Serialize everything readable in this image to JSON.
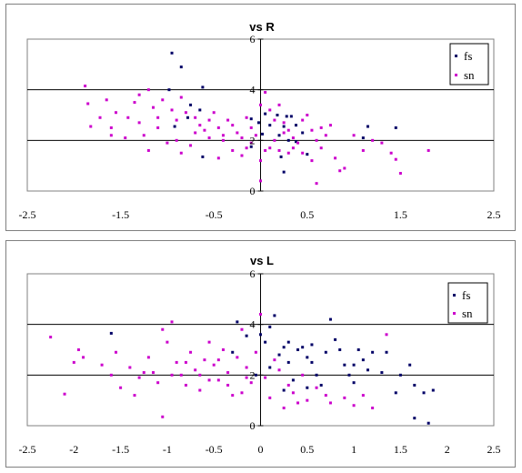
{
  "chart_data": [
    {
      "type": "scatter",
      "title": "vs R",
      "xlim": [
        -2.5,
        2.5
      ],
      "ylim": [
        0,
        6
      ],
      "x_ticks": [
        "-2.5",
        "-1.5",
        "-0.5",
        "0.5",
        "1.5",
        "2.5"
      ],
      "y_ticks": [
        "0",
        "2",
        "4",
        "6"
      ],
      "grid": "horizontal",
      "legend": "top-right",
      "series": [
        {
          "name": "fs",
          "color": "#000066",
          "points": [
            [
              -0.95,
              5.45
            ],
            [
              -0.85,
              4.9
            ],
            [
              -0.98,
              4.0
            ],
            [
              -0.62,
              4.1
            ],
            [
              -0.75,
              3.4
            ],
            [
              -0.65,
              3.2
            ],
            [
              -0.78,
              2.9
            ],
            [
              -0.1,
              2.85
            ],
            [
              -0.02,
              2.7
            ],
            [
              0.05,
              3.05
            ],
            [
              0.18,
              3.0
            ],
            [
              0.28,
              2.95
            ],
            [
              0.33,
              2.95
            ],
            [
              0.1,
              2.6
            ],
            [
              0.25,
              2.55
            ],
            [
              0.38,
              2.6
            ],
            [
              0.45,
              2.3
            ],
            [
              0.2,
              2.2
            ],
            [
              0.3,
              2.0
            ],
            [
              0.38,
              1.95
            ],
            [
              1.15,
              2.55
            ],
            [
              1.45,
              2.5
            ],
            [
              1.1,
              2.1
            ],
            [
              0.22,
              1.35
            ],
            [
              0.25,
              0.75
            ],
            [
              -0.92,
              2.55
            ],
            [
              -0.62,
              1.35
            ],
            [
              -0.1,
              1.75
            ],
            [
              0.5,
              1.45
            ],
            [
              0.02,
              2.25
            ]
          ]
        },
        {
          "name": "sn",
          "color": "#cc00cc",
          "points": [
            [
              -1.88,
              4.15
            ],
            [
              -1.85,
              3.45
            ],
            [
              -1.65,
              3.6
            ],
            [
              -1.55,
              3.1
            ],
            [
              -1.72,
              2.9
            ],
            [
              -1.82,
              2.55
            ],
            [
              -1.6,
              2.5
            ],
            [
              -1.42,
              2.9
            ],
            [
              -1.35,
              3.5
            ],
            [
              -1.3,
              3.8
            ],
            [
              -1.2,
              4.0
            ],
            [
              -1.15,
              3.3
            ],
            [
              -1.1,
              2.9
            ],
            [
              -1.05,
              3.6
            ],
            [
              -0.95,
              3.2
            ],
            [
              -0.9,
              2.8
            ],
            [
              -0.85,
              3.7
            ],
            [
              -0.8,
              3.1
            ],
            [
              -0.7,
              2.9
            ],
            [
              -0.65,
              2.6
            ],
            [
              -0.6,
              2.4
            ],
            [
              -0.55,
              2.8
            ],
            [
              -0.5,
              3.1
            ],
            [
              -0.45,
              2.5
            ],
            [
              -0.4,
              2.2
            ],
            [
              -0.35,
              2.8
            ],
            [
              -0.3,
              2.6
            ],
            [
              -0.25,
              2.3
            ],
            [
              -0.2,
              2.1
            ],
            [
              -0.15,
              2.9
            ],
            [
              -0.1,
              2.5
            ],
            [
              -0.05,
              2.2
            ],
            [
              0.0,
              3.4
            ],
            [
              0.05,
              3.9
            ],
            [
              0.1,
              3.2
            ],
            [
              0.15,
              2.8
            ],
            [
              0.2,
              3.4
            ],
            [
              0.25,
              2.7
            ],
            [
              0.3,
              2.4
            ],
            [
              0.35,
              2.1
            ],
            [
              0.4,
              1.9
            ],
            [
              0.45,
              2.8
            ],
            [
              0.5,
              3.0
            ],
            [
              0.55,
              2.4
            ],
            [
              0.6,
              2.0
            ],
            [
              0.65,
              1.7
            ],
            [
              0.7,
              2.2
            ],
            [
              0.75,
              2.6
            ],
            [
              0.8,
              1.3
            ],
            [
              0.85,
              0.8
            ],
            [
              0.9,
              0.9
            ],
            [
              1.0,
              2.2
            ],
            [
              1.1,
              1.6
            ],
            [
              1.2,
              2.0
            ],
            [
              1.3,
              1.9
            ],
            [
              1.4,
              1.5
            ],
            [
              1.45,
              1.25
            ],
            [
              1.5,
              0.7
            ],
            [
              1.8,
              1.6
            ],
            [
              -1.45,
              2.1
            ],
            [
              -1.25,
              2.2
            ],
            [
              -1.0,
              1.9
            ],
            [
              -0.9,
              2.0
            ],
            [
              -0.75,
              1.8
            ],
            [
              -0.55,
              2.1
            ],
            [
              -0.3,
              1.6
            ],
            [
              -0.2,
              1.4
            ],
            [
              -0.1,
              1.9
            ],
            [
              0.05,
              1.6
            ],
            [
              0.1,
              1.7
            ],
            [
              0.2,
              1.6
            ],
            [
              0.3,
              1.5
            ],
            [
              0.45,
              1.5
            ],
            [
              0.55,
              1.2
            ],
            [
              0.6,
              0.3
            ],
            [
              0.0,
              0.4
            ],
            [
              -0.4,
              2.0
            ],
            [
              -0.7,
              2.3
            ],
            [
              -1.1,
              2.5
            ],
            [
              -1.3,
              2.7
            ],
            [
              -0.45,
              1.3
            ],
            [
              -0.15,
              1.7
            ],
            [
              -0.85,
              1.5
            ],
            [
              0.15,
              2.0
            ],
            [
              0.35,
              1.7
            ],
            [
              0.0,
              1.2
            ],
            [
              -1.6,
              2.2
            ],
            [
              -1.2,
              1.6
            ],
            [
              0.65,
              2.5
            ],
            [
              0.25,
              2.3
            ]
          ]
        }
      ]
    },
    {
      "type": "scatter",
      "title": "vs L",
      "xlim": [
        -2.5,
        2.5
      ],
      "ylim": [
        0,
        6
      ],
      "x_ticks": [
        "-2.5",
        "-2",
        "-1.5",
        "-1",
        "-0.5",
        "0",
        "0.5",
        "1",
        "1.5",
        "2",
        "2.5"
      ],
      "y_ticks": [
        "0",
        "2",
        "4",
        "6"
      ],
      "grid": "horizontal",
      "legend": "top-right",
      "series": [
        {
          "name": "fs",
          "color": "#000066",
          "points": [
            [
              -1.6,
              3.65
            ],
            [
              -0.15,
              3.55
            ],
            [
              -0.25,
              4.1
            ],
            [
              0.1,
              3.9
            ],
            [
              0.15,
              4.35
            ],
            [
              0.05,
              3.3
            ],
            [
              0.2,
              2.8
            ],
            [
              0.25,
              3.1
            ],
            [
              0.3,
              2.5
            ],
            [
              0.4,
              3.0
            ],
            [
              0.45,
              3.1
            ],
            [
              0.5,
              2.7
            ],
            [
              0.55,
              2.5
            ],
            [
              0.6,
              2.0
            ],
            [
              0.65,
              1.6
            ],
            [
              0.7,
              2.9
            ],
            [
              0.75,
              4.2
            ],
            [
              0.8,
              3.4
            ],
            [
              0.85,
              3.0
            ],
            [
              0.9,
              2.4
            ],
            [
              0.95,
              2.0
            ],
            [
              1.0,
              1.7
            ],
            [
              1.05,
              3.0
            ],
            [
              1.1,
              2.6
            ],
            [
              1.15,
              2.2
            ],
            [
              1.2,
              2.9
            ],
            [
              1.3,
              2.1
            ],
            [
              1.45,
              1.3
            ],
            [
              1.5,
              2.0
            ],
            [
              1.6,
              2.4
            ],
            [
              1.65,
              1.6
            ],
            [
              1.75,
              1.3
            ],
            [
              1.85,
              1.4
            ],
            [
              1.8,
              0.1
            ],
            [
              1.65,
              0.3
            ],
            [
              0.5,
              1.5
            ],
            [
              0.35,
              1.8
            ],
            [
              0.1,
              2.3
            ],
            [
              -0.05,
              2.0
            ],
            [
              0.0,
              3.6
            ],
            [
              0.3,
              3.3
            ],
            [
              0.55,
              3.2
            ],
            [
              0.25,
              1.4
            ],
            [
              -0.3,
              2.9
            ],
            [
              1.0,
              2.4
            ],
            [
              1.35,
              2.9
            ]
          ]
        },
        {
          "name": "sn",
          "color": "#cc00cc",
          "points": [
            [
              -2.25,
              3.5
            ],
            [
              -2.1,
              1.25
            ],
            [
              -1.95,
              3.0
            ],
            [
              -1.9,
              2.7
            ],
            [
              -1.7,
              2.4
            ],
            [
              -1.6,
              2.0
            ],
            [
              -1.55,
              2.9
            ],
            [
              -1.5,
              1.5
            ],
            [
              -1.4,
              2.3
            ],
            [
              -1.3,
              1.9
            ],
            [
              -1.2,
              2.7
            ],
            [
              -1.15,
              2.1
            ],
            [
              -1.1,
              1.7
            ],
            [
              -1.05,
              3.8
            ],
            [
              -1.0,
              3.3
            ],
            [
              -0.95,
              4.1
            ],
            [
              -0.9,
              2.5
            ],
            [
              -0.85,
              2.0
            ],
            [
              -0.8,
              1.6
            ],
            [
              -0.75,
              2.9
            ],
            [
              -0.7,
              2.2
            ],
            [
              -0.65,
              1.4
            ],
            [
              -0.6,
              2.6
            ],
            [
              -0.55,
              3.3
            ],
            [
              -0.5,
              2.4
            ],
            [
              -0.45,
              1.8
            ],
            [
              -0.4,
              3.0
            ],
            [
              -0.35,
              2.1
            ],
            [
              -0.3,
              1.2
            ],
            [
              -0.25,
              2.7
            ],
            [
              -0.2,
              3.8
            ],
            [
              -0.15,
              2.3
            ],
            [
              -0.1,
              1.7
            ],
            [
              -0.05,
              2.9
            ],
            [
              0.0,
              4.4
            ],
            [
              0.05,
              1.9
            ],
            [
              0.1,
              1.1
            ],
            [
              0.15,
              2.6
            ],
            [
              0.2,
              2.2
            ],
            [
              0.25,
              0.7
            ],
            [
              0.3,
              1.6
            ],
            [
              0.35,
              1.3
            ],
            [
              0.4,
              0.9
            ],
            [
              0.45,
              2.0
            ],
            [
              0.5,
              1.0
            ],
            [
              0.6,
              1.5
            ],
            [
              0.7,
              1.2
            ],
            [
              0.75,
              0.9
            ],
            [
              0.9,
              1.1
            ],
            [
              1.0,
              0.8
            ],
            [
              1.1,
              1.2
            ],
            [
              1.2,
              0.7
            ],
            [
              1.35,
              3.6
            ],
            [
              -1.05,
              0.35
            ],
            [
              -2.0,
              2.5
            ],
            [
              -1.35,
              1.2
            ],
            [
              -0.8,
              2.5
            ],
            [
              -0.55,
              1.8
            ],
            [
              -0.95,
              2.0
            ],
            [
              -1.25,
              2.1
            ],
            [
              -0.65,
              2.0
            ],
            [
              -0.35,
              1.6
            ],
            [
              -0.15,
              1.9
            ],
            [
              -0.45,
              2.6
            ],
            [
              -0.2,
              1.3
            ]
          ]
        }
      ]
    }
  ]
}
